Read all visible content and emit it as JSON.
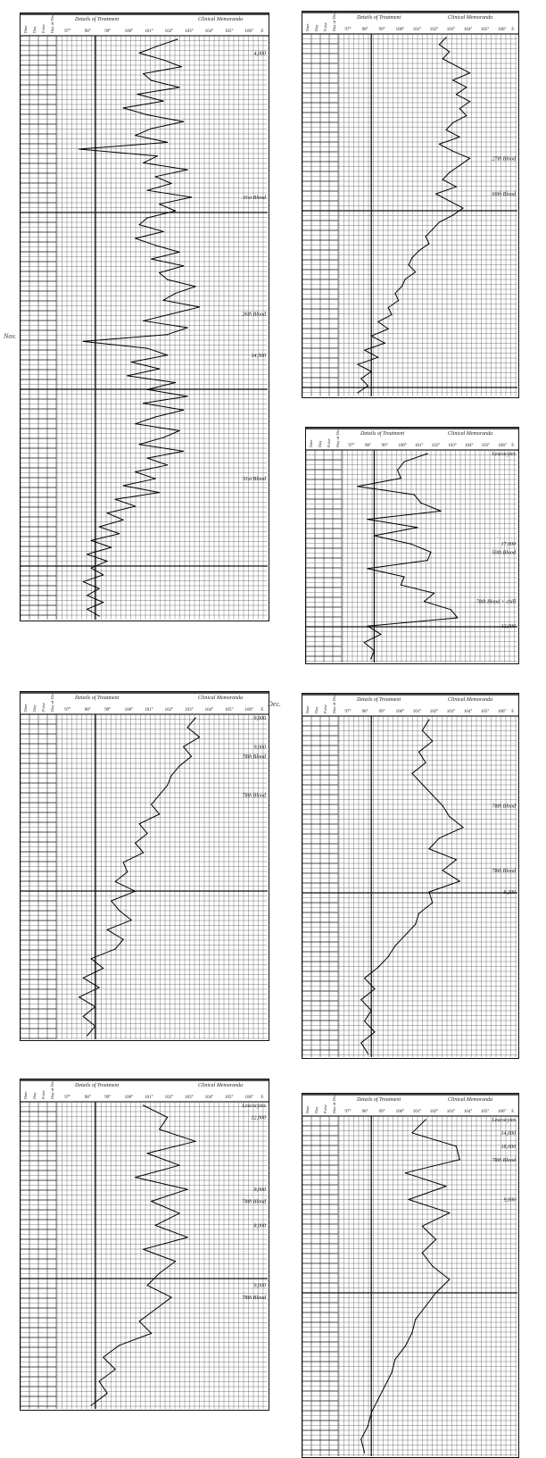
{
  "header": {
    "treatment": "Details of Treatment",
    "memoranda": "Clinical Memoranda",
    "columns": [
      "Date",
      "Day",
      "Pulse",
      "Day of Dis."
    ],
    "ticks": [
      "97°",
      "98°",
      "99°",
      "100°",
      "101°",
      "102°",
      "103°",
      "104°",
      "105°",
      "106°",
      "F."
    ]
  },
  "side_marks": [
    "Nov.",
    "Dec."
  ],
  "chart_data": [
    {
      "type": "line",
      "xlim": [
        96.5,
        107
      ],
      "normal_line": 98.4,
      "orientation": "vertical-time",
      "values": [
        102.5,
        101.5,
        100.6,
        101.8,
        102.7,
        100.8,
        101.2,
        102.6,
        100.5,
        101.8,
        99.8,
        101.0,
        102.8,
        101.2,
        100.4,
        102.0,
        97.6,
        101.5,
        100.8,
        103.0,
        101.4,
        102.2,
        101.0,
        103.2,
        101.6,
        102.4,
        101.0,
        100.6,
        101.8,
        100.4,
        101.4,
        102.6,
        101.2,
        102.8,
        101.6,
        102.0,
        103.4,
        102.4,
        101.8,
        103.6,
        102.2,
        100.8,
        103.0,
        102.0,
        97.8,
        101.0,
        102.0,
        100.2,
        101.6,
        100.0,
        102.4,
        101.0,
        103.0,
        100.8,
        102.8,
        101.4,
        100.4,
        102.6,
        101.8,
        100.6,
        102.8,
        101.0,
        102.0,
        100.4,
        101.4,
        99.8,
        101.6,
        99.4,
        100.4,
        99.0,
        99.8,
        98.6,
        99.6,
        98.2,
        99.2,
        98.0,
        99.0,
        98.2,
        98.8,
        97.8,
        98.6,
        98.0,
        98.8,
        98.0,
        98.6
      ],
      "annotations": [
        {
          "row": 2,
          "text": "4,000"
        },
        {
          "row": 23,
          "text": "31st Blood"
        },
        {
          "row": 40,
          "text": "26th Blood"
        },
        {
          "row": 46,
          "text": "14,500"
        },
        {
          "row": 64,
          "text": "31st Blood"
        }
      ]
    },
    {
      "type": "line",
      "xlim": [
        96.5,
        107
      ],
      "normal_line": 98.4,
      "orientation": "vertical-time",
      "values": [
        102.8,
        102.4,
        103.0,
        102.6,
        103.4,
        104.2,
        103.2,
        104.0,
        103.4,
        104.2,
        103.6,
        104.0,
        103.2,
        102.8,
        103.6,
        102.4,
        103.2,
        104.2,
        103.6,
        103.0,
        102.6,
        103.4,
        102.2,
        103.0,
        103.8,
        103.2,
        102.4,
        102.0,
        101.6,
        101.8,
        101.2,
        100.8,
        100.6,
        101.0,
        100.4,
        100.2,
        99.8,
        100.0,
        99.4,
        99.6,
        98.8,
        99.4,
        98.4,
        99.2,
        98.0,
        98.8,
        97.6,
        98.4,
        97.8,
        98.2,
        97.6
      ],
      "annotations": [
        {
          "row": 17,
          "text": "27th Blood"
        },
        {
          "row": 22,
          "text": "60th Blood"
        }
      ]
    },
    {
      "type": "line",
      "xlim": [
        96.5,
        107
      ],
      "normal_line": 98.4,
      "orientation": "vertical-time",
      "values": [
        101.6,
        100.2,
        99.8,
        100.0,
        97.4,
        100.8,
        101.2,
        102.4,
        98.0,
        101.0,
        98.4,
        100.6,
        101.8,
        101.6,
        98.0,
        100.2,
        100.0,
        102.0,
        101.4,
        103.0,
        103.4,
        98.0,
        98.8,
        97.8,
        98.4,
        98.2
      ],
      "annotations": [
        {
          "row": 0,
          "text": "Leucocytes"
        },
        {
          "row": 11,
          "text": "17,000"
        },
        {
          "row": 12,
          "text": "50th Blood"
        },
        {
          "row": 18,
          "text": "78th Blood + chill"
        },
        {
          "row": 21,
          "text": "12,000"
        }
      ]
    },
    {
      "type": "line",
      "xlim": [
        96.5,
        107
      ],
      "normal_line": 98.4,
      "orientation": "vertical-time",
      "values": [
        103.4,
        103.0,
        103.6,
        102.8,
        103.2,
        102.6,
        102.2,
        102.0,
        101.6,
        101.2,
        101.6,
        100.6,
        101.0,
        100.4,
        100.8,
        99.8,
        100.0,
        99.4,
        100.4,
        99.2,
        99.6,
        100.2,
        99.0,
        99.8,
        99.4,
        98.2,
        98.8,
        97.8,
        98.6,
        97.6,
        98.4,
        97.8,
        98.4,
        98.0
      ],
      "annotations": [
        {
          "row": 0,
          "text": "9,000"
        },
        {
          "row": 3,
          "text": "9,000"
        },
        {
          "row": 4,
          "text": "78th Blood"
        },
        {
          "row": 8,
          "text": "78th Blood"
        }
      ]
    },
    {
      "type": "line",
      "xlim": [
        96.5,
        107
      ],
      "normal_line": 98.4,
      "orientation": "vertical-time",
      "values": [
        101.8,
        101.4,
        102.0,
        101.2,
        101.6,
        100.8,
        101.4,
        102.0,
        102.6,
        103.0,
        103.8,
        102.4,
        101.8,
        103.4,
        102.6,
        103.6,
        101.8,
        102.0,
        101.2,
        101.0,
        100.4,
        99.8,
        99.4,
        98.8,
        98.0,
        98.6,
        97.8,
        98.4,
        98.0,
        98.6,
        97.8,
        98.2
      ],
      "annotations": [
        {
          "row": 8,
          "text": "78th Blood"
        },
        {
          "row": 14,
          "text": "78th Blood"
        },
        {
          "row": 16,
          "text": "9,200"
        }
      ]
    },
    {
      "type": "line",
      "xlim": [
        96.5,
        107
      ],
      "normal_line": 98.4,
      "orientation": "vertical-time",
      "values": [
        100.8,
        102.0,
        101.6,
        103.4,
        101.0,
        102.6,
        100.4,
        103.0,
        101.2,
        102.6,
        101.4,
        103.0,
        100.8,
        102.4,
        101.6,
        101.0,
        102.2,
        101.4,
        100.6,
        101.2,
        99.6,
        98.8,
        99.4,
        98.6,
        99.0,
        98.2
      ],
      "annotations": [
        {
          "row": 0,
          "text": "Leucocytes"
        },
        {
          "row": 1,
          "text": "12,000"
        },
        {
          "row": 7,
          "text": "9,000"
        },
        {
          "row": 8,
          "text": "78th Blood"
        },
        {
          "row": 10,
          "text": "8,000"
        },
        {
          "row": 15,
          "text": "9,000"
        },
        {
          "row": 16,
          "text": "78th Blood"
        }
      ]
    },
    {
      "type": "line",
      "xlim": [
        96.5,
        107
      ],
      "normal_line": 98.4,
      "orientation": "vertical-time",
      "values": [
        101.6,
        100.8,
        103.4,
        103.6,
        100.4,
        102.8,
        100.6,
        103.0,
        101.4,
        102.2,
        101.4,
        102.0,
        103.0,
        102.2,
        101.6,
        101.0,
        100.8,
        100.4,
        99.8,
        99.6,
        99.2,
        98.8,
        98.4,
        98.2,
        97.8,
        98.0
      ],
      "annotations": [
        {
          "row": 0,
          "text": "Leucocytes"
        },
        {
          "row": 1,
          "text": "14,000"
        },
        {
          "row": 2,
          "text": "18,000"
        },
        {
          "row": 3,
          "text": "78th Blood"
        },
        {
          "row": 6,
          "text": "9,000"
        }
      ]
    }
  ]
}
